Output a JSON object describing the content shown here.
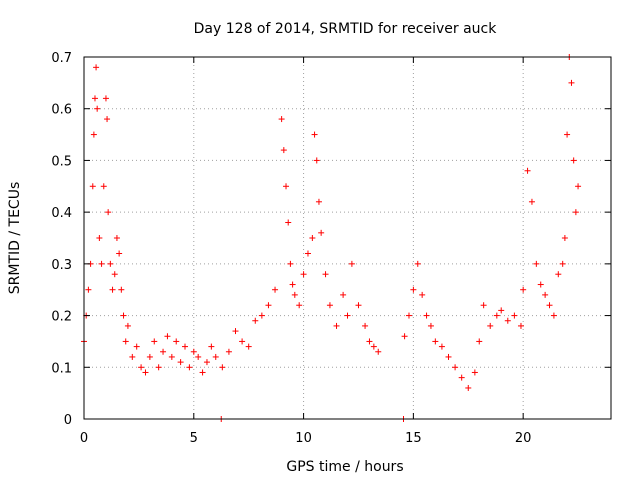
{
  "chart_data": {
    "type": "scatter",
    "title": "Day 128 of 2014, SRMTID for receiver auck",
    "xlabel": "GPS time / hours",
    "ylabel": "SRMTID / TECUs",
    "xlim": [
      0,
      24
    ],
    "ylim": [
      0,
      0.7
    ],
    "xticks": [
      0,
      5,
      10,
      15,
      20
    ],
    "xtick_labels": [
      "0",
      "5",
      "10",
      "15",
      "20"
    ],
    "yticks": [
      0,
      0.1,
      0.2,
      0.3,
      0.4,
      0.5,
      0.6,
      0.7
    ],
    "ytick_labels": [
      "0",
      "0.1",
      "0.2",
      "0.3",
      "0.4",
      "0.5",
      "0.6",
      "0.7"
    ],
    "grid": true,
    "marker": "+",
    "color": "#ff0000",
    "series": [
      {
        "name": "SRMTID",
        "x": [
          0.0,
          0.1,
          0.2,
          0.3,
          0.4,
          0.45,
          0.5,
          0.55,
          0.6,
          0.7,
          0.8,
          0.9,
          1.0,
          1.05,
          1.1,
          1.2,
          1.3,
          1.4,
          1.5,
          1.6,
          1.7,
          1.8,
          1.9,
          2.0,
          2.2,
          2.4,
          2.6,
          2.8,
          3.0,
          3.2,
          3.4,
          3.6,
          3.8,
          4.0,
          4.2,
          4.4,
          4.6,
          4.8,
          5.0,
          5.2,
          5.4,
          5.6,
          5.8,
          6.0,
          6.3,
          6.6,
          6.9,
          7.2,
          7.5,
          7.8,
          8.1,
          8.4,
          8.7,
          9.0,
          9.1,
          9.2,
          9.3,
          9.4,
          9.5,
          9.6,
          9.8,
          10.0,
          10.2,
          10.4,
          10.5,
          10.6,
          10.7,
          10.8,
          11.0,
          11.2,
          11.5,
          11.8,
          12.0,
          12.2,
          12.5,
          12.8,
          13.0,
          13.2,
          13.4,
          14.6,
          14.8,
          15.0,
          15.2,
          15.4,
          15.6,
          15.8,
          16.0,
          16.3,
          16.6,
          16.9,
          17.2,
          17.5,
          17.8,
          18.0,
          18.2,
          18.5,
          18.8,
          19.0,
          19.3,
          19.6,
          19.9,
          20.0,
          20.2,
          20.4,
          20.6,
          20.8,
          21.0,
          21.2,
          21.4,
          21.6,
          21.8,
          21.9,
          22.0,
          22.1,
          22.2,
          22.3,
          22.4,
          22.5,
          6.25,
          14.55
        ],
        "y": [
          0.15,
          0.2,
          0.25,
          0.3,
          0.45,
          0.55,
          0.62,
          0.68,
          0.6,
          0.35,
          0.3,
          0.45,
          0.62,
          0.58,
          0.4,
          0.3,
          0.25,
          0.28,
          0.35,
          0.32,
          0.25,
          0.2,
          0.15,
          0.18,
          0.12,
          0.14,
          0.1,
          0.09,
          0.12,
          0.15,
          0.1,
          0.13,
          0.16,
          0.12,
          0.15,
          0.11,
          0.14,
          0.1,
          0.13,
          0.12,
          0.09,
          0.11,
          0.14,
          0.12,
          0.1,
          0.13,
          0.17,
          0.15,
          0.14,
          0.19,
          0.2,
          0.22,
          0.25,
          0.58,
          0.52,
          0.45,
          0.38,
          0.3,
          0.26,
          0.24,
          0.22,
          0.28,
          0.32,
          0.35,
          0.55,
          0.5,
          0.42,
          0.36,
          0.28,
          0.22,
          0.18,
          0.24,
          0.2,
          0.3,
          0.22,
          0.18,
          0.15,
          0.14,
          0.13,
          0.16,
          0.2,
          0.25,
          0.3,
          0.24,
          0.2,
          0.18,
          0.15,
          0.14,
          0.12,
          0.1,
          0.08,
          0.06,
          0.09,
          0.15,
          0.22,
          0.18,
          0.2,
          0.21,
          0.19,
          0.2,
          0.18,
          0.25,
          0.48,
          0.42,
          0.3,
          0.26,
          0.24,
          0.22,
          0.2,
          0.28,
          0.3,
          0.35,
          0.55,
          0.7,
          0.65,
          0.5,
          0.4,
          0.45,
          0.0,
          0.0
        ]
      }
    ]
  }
}
